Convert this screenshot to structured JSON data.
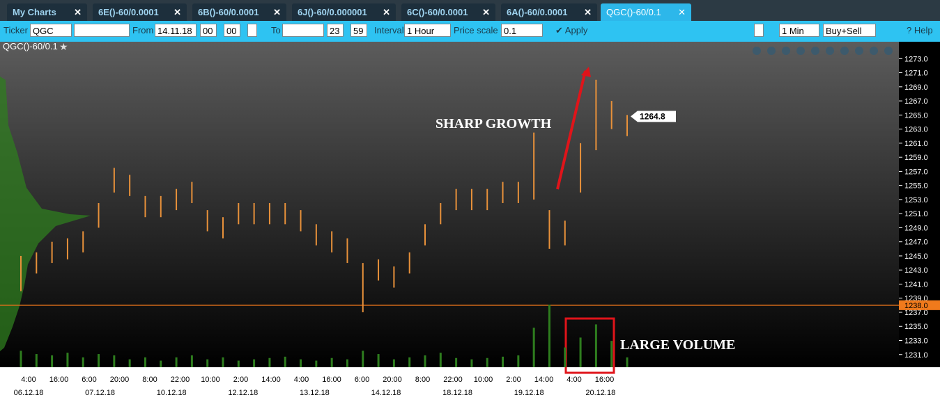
{
  "ui": {
    "tabs": [
      "My Charts",
      "6E()-60/0.0001",
      "6B()-60/0.0001",
      "6J()-60/0.000001",
      "6C()-60/0.0001",
      "6A()-60/0.0001",
      "QGC()-60/0.1"
    ],
    "toolbar": {
      "ticker_label": "Ticker",
      "ticker": "QGC",
      "from_label": "From",
      "from_date": "14.11.18",
      "from_hour": "00",
      "from_min": "00",
      "to_label": "To",
      "to_hour": "23",
      "to_min": "59",
      "interval_label": "Interval",
      "interval": "1 Hour",
      "price_scale_label": "Price scale",
      "price_scale": "0.1",
      "apply": "Apply",
      "timeframe": "1 Min",
      "side": "Buy+Sell",
      "help": "Help"
    }
  },
  "chart_data": {
    "type": "range-bar",
    "title": "QGC()-60/0.1",
    "color": "#e8913a",
    "volume_color": "#2e7d1e",
    "low": [
      1240,
      1242.5,
      1244,
      1244.5,
      1245.5,
      1249,
      1254,
      1253.5,
      1250.5,
      1250.5,
      1251.5,
      1252.5,
      1248.5,
      1247.5,
      1249.5,
      1249.5,
      1249.5,
      1249.5,
      1248.5,
      1246.5,
      1245.5,
      1244,
      1237,
      1241.5,
      1240.5,
      1242.5,
      1246.5,
      1249.5,
      1251.5,
      1251.5,
      1251.5,
      1252.5,
      1252.5,
      1253,
      1246,
      1246.5,
      1254,
      1260,
      1263,
      1262
    ],
    "high": [
      1245,
      1245.5,
      1247,
      1247.5,
      1248.5,
      1252.5,
      1257.5,
      1256.5,
      1253.5,
      1253.5,
      1254.5,
      1255.5,
      1251.5,
      1250.5,
      1252.5,
      1252.5,
      1252.5,
      1252.5,
      1251.5,
      1249.5,
      1248.5,
      1247.5,
      1244,
      1244.5,
      1243.5,
      1245.5,
      1249.5,
      1252.5,
      1254.5,
      1254.5,
      1254.5,
      1255.5,
      1255.5,
      1262.5,
      1251.5,
      1250,
      1261,
      1270,
      1267,
      1265
    ],
    "volume": [
      25,
      20,
      18,
      22,
      15,
      20,
      18,
      12,
      15,
      10,
      15,
      18,
      12,
      15,
      10,
      12,
      14,
      16,
      12,
      10,
      14,
      12,
      25,
      20,
      12,
      15,
      18,
      22,
      14,
      12,
      14,
      16,
      18,
      60,
      95,
      30,
      45,
      65,
      40,
      15
    ],
    "ylim": [
      1229.2,
      1275.4
    ],
    "yticks": [
      {
        "value": 1231,
        "label": "1231.0"
      },
      {
        "value": 1233,
        "label": "1233.0"
      },
      {
        "value": 1235,
        "label": "1235.0"
      },
      {
        "value": 1237,
        "label": "1237.0"
      },
      {
        "value": 1239,
        "label": "1239.0"
      },
      {
        "value": 1241,
        "label": "1241.0"
      },
      {
        "value": 1243,
        "label": "1243.0"
      },
      {
        "value": 1245,
        "label": "1245.0"
      },
      {
        "value": 1247,
        "label": "1247.0"
      },
      {
        "value": 1249,
        "label": "1249.0"
      },
      {
        "value": 1251,
        "label": "1251.0"
      },
      {
        "value": 1253,
        "label": "1253.0"
      },
      {
        "value": 1255,
        "label": "1255.0"
      },
      {
        "value": 1257,
        "label": "1257.0"
      },
      {
        "value": 1259,
        "label": "1259.0"
      },
      {
        "value": 1261,
        "label": "1261.0"
      },
      {
        "value": 1263,
        "label": "1263.0"
      },
      {
        "value": 1265,
        "label": "1265.0"
      },
      {
        "value": 1267,
        "label": "1267.0"
      },
      {
        "value": 1269,
        "label": "1269.0"
      },
      {
        "value": 1271,
        "label": "1271.0"
      },
      {
        "value": 1273,
        "label": "1273.0"
      }
    ],
    "time_labels": [
      "4:00",
      "16:00",
      "6:00",
      "20:00",
      "8:00",
      "22:00",
      "10:00",
      "2:00",
      "14:00",
      "4:00",
      "16:00",
      "6:00",
      "20:00",
      "8:00",
      "22:00",
      "10:00",
      "2:00",
      "14:00",
      "4:00",
      "16:00"
    ],
    "date_labels": [
      "06.12.18",
      "07.12.18",
      "10.12.18",
      "12.12.18",
      "13.12.18",
      "14.12.18",
      "18.12.18",
      "19.12.18",
      "20.12.18"
    ],
    "support": {
      "value": 1238,
      "label": "1238.0"
    },
    "last_price": 1264.8,
    "annotations": [
      "SHARP GROWTH",
      "LARGE VOLUME"
    ]
  }
}
